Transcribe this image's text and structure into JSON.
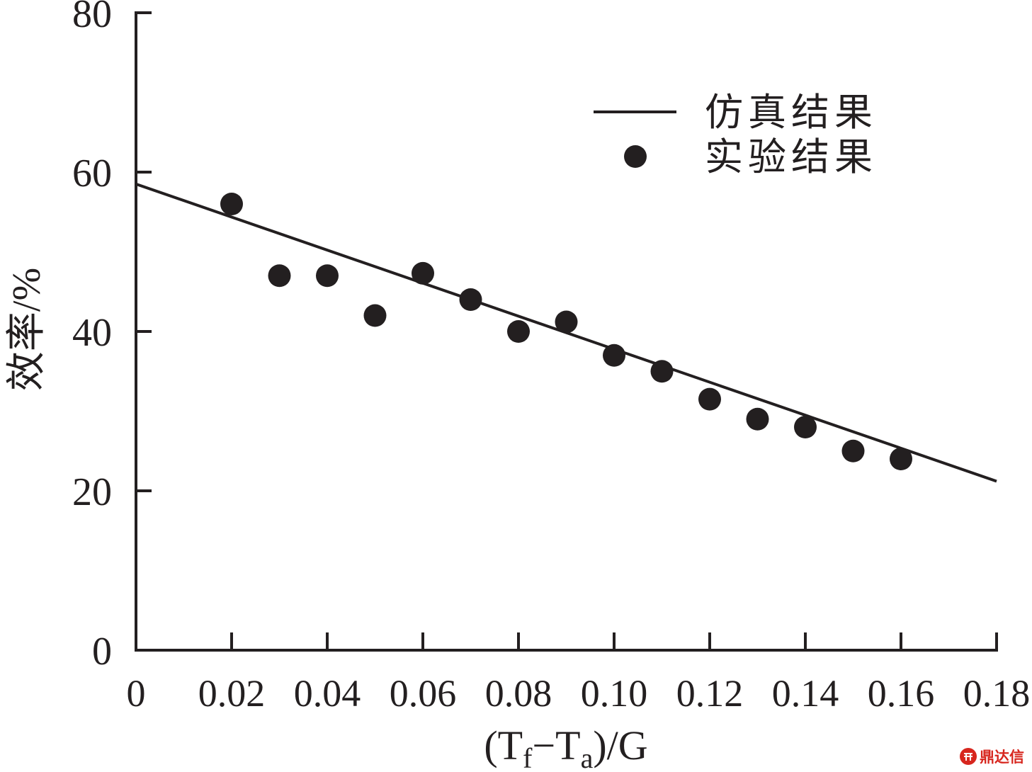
{
  "chart_data": {
    "type": "scatter",
    "title": "",
    "xlabel_segments": [
      {
        "text": "(T",
        "sub": false
      },
      {
        "text": "f",
        "sub": true
      },
      {
        "text": "−T",
        "sub": false
      },
      {
        "text": "a",
        "sub": true
      },
      {
        "text": ")/G",
        "sub": false
      }
    ],
    "ylabel": "效率/%",
    "xlim": [
      0,
      0.18
    ],
    "ylim": [
      0,
      80
    ],
    "grid": false,
    "legend": {
      "placement": "upper-right"
    },
    "xticks": [
      {
        "value": 0,
        "label": "0"
      },
      {
        "value": 0.02,
        "label": "0.02"
      },
      {
        "value": 0.04,
        "label": "0.04"
      },
      {
        "value": 0.06,
        "label": "0.06"
      },
      {
        "value": 0.08,
        "label": "0.08"
      },
      {
        "value": 0.1,
        "label": "0.10"
      },
      {
        "value": 0.12,
        "label": "0.12"
      },
      {
        "value": 0.14,
        "label": "0.14"
      },
      {
        "value": 0.16,
        "label": "0.16"
      },
      {
        "value": 0.18,
        "label": "0.18"
      }
    ],
    "yticks": [
      {
        "value": 0,
        "label": "0"
      },
      {
        "value": 20,
        "label": "20"
      },
      {
        "value": 40,
        "label": "40"
      },
      {
        "value": 60,
        "label": "60"
      },
      {
        "value": 80,
        "label": "80"
      }
    ],
    "series": [
      {
        "name": "仿真结果",
        "type": "line",
        "color": "#231f20",
        "x": [
          0,
          0.18
        ],
        "y": [
          58.5,
          21.2
        ]
      },
      {
        "name": "实验结果",
        "type": "scatter",
        "color": "#231f20",
        "x": [
          0.02,
          0.03,
          0.04,
          0.05,
          0.06,
          0.07,
          0.08,
          0.09,
          0.1,
          0.11,
          0.12,
          0.13,
          0.14,
          0.15,
          0.16
        ],
        "y": [
          56,
          47,
          47,
          42,
          47.3,
          44,
          40,
          41.2,
          37,
          35,
          31.5,
          29,
          28,
          25,
          24
        ]
      }
    ]
  },
  "watermark": {
    "text": "鼎达信",
    "color": "#d7261e"
  }
}
